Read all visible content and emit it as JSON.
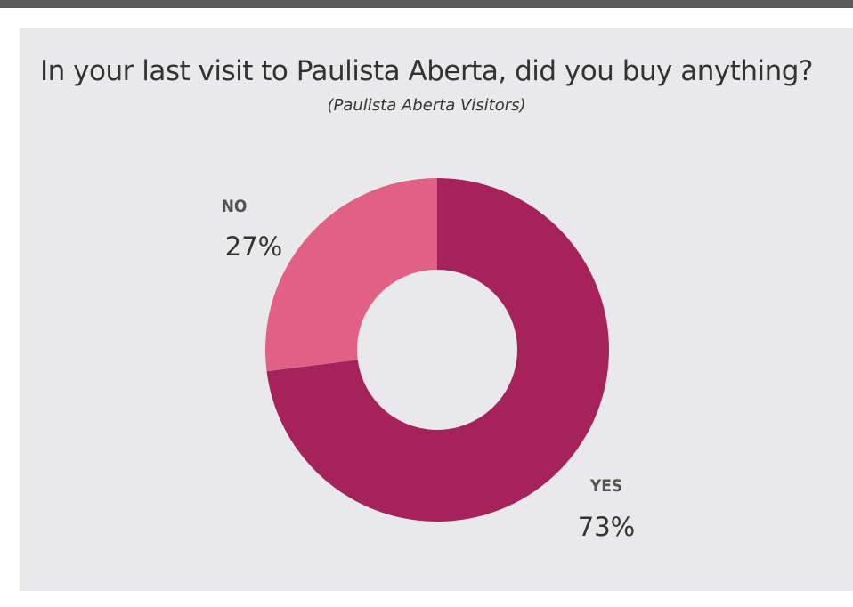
{
  "chart_data": {
    "type": "pie",
    "title": "In your last visit to Paulista Aberta, did you buy anything?",
    "subtitle": "(Paulista Aberta Visitors)",
    "donut": true,
    "categories": [
      "YES",
      "NO"
    ],
    "values": [
      73,
      27
    ],
    "value_labels": [
      "73%",
      "27%"
    ],
    "colors": [
      "#a5225a",
      "#e06185"
    ]
  },
  "colors": {
    "panel_background": "#e9e8ea",
    "top_rule": "#5a5a5a"
  }
}
